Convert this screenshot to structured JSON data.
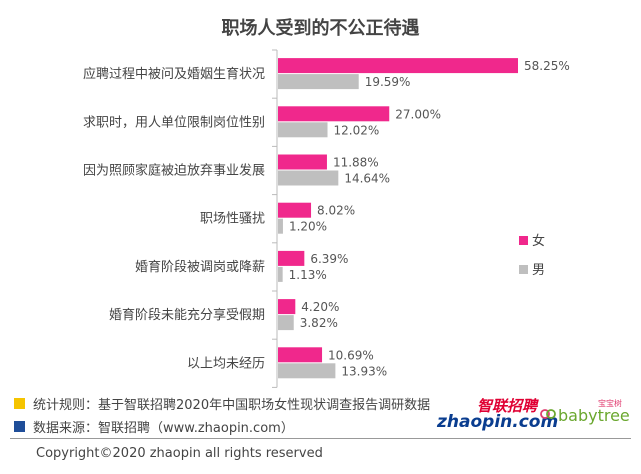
{
  "title": "职场人受到的不公正待遇",
  "colors": {
    "female": "#f0288c",
    "male": "#bfbfbf",
    "note1": "#f5c400",
    "note2": "#1f4e99"
  },
  "chart_data": {
    "type": "bar",
    "orientation": "horizontal",
    "title": "职场人受到的不公正待遇",
    "categories": [
      "应聘过程中被问及婚姻生育状况",
      "求职时，用人单位限制岗位性别",
      "因为照顾家庭被迫放弃事业发展",
      "职场性骚扰",
      "婚育阶段被调岗或降薪",
      "婚育阶段未能充分享受假期",
      "以上均未经历"
    ],
    "series": [
      {
        "name": "女",
        "values": [
          58.25,
          27.0,
          11.88,
          8.02,
          6.39,
          4.2,
          10.69
        ],
        "labels": [
          "58.25%",
          "27.00%",
          "11.88%",
          "8.02%",
          "6.39%",
          "4.20%",
          "10.69%"
        ]
      },
      {
        "name": "男",
        "values": [
          19.59,
          12.02,
          14.64,
          1.2,
          1.13,
          3.82,
          13.93
        ],
        "labels": [
          "19.59%",
          "12.02%",
          "14.64%",
          "1.20%",
          "1.13%",
          "3.82%",
          "13.93%"
        ]
      }
    ],
    "xlim": [
      0,
      70
    ],
    "legend_position": "right"
  },
  "footer": {
    "note1": "统计规则：基于智联招聘2020年中国职场女性现状调查报告调研数据",
    "note2": "数据来源：智联招聘（www.zhaopin.com）",
    "copyright": "Copyright©2020 zhaopin all rights reserved"
  },
  "logos": {
    "zhaopin_cn": "智联招聘",
    "zhaopin_en": "zhaopin.com",
    "babytree_cn": "宝宝树",
    "babytree_en": "babytree"
  }
}
